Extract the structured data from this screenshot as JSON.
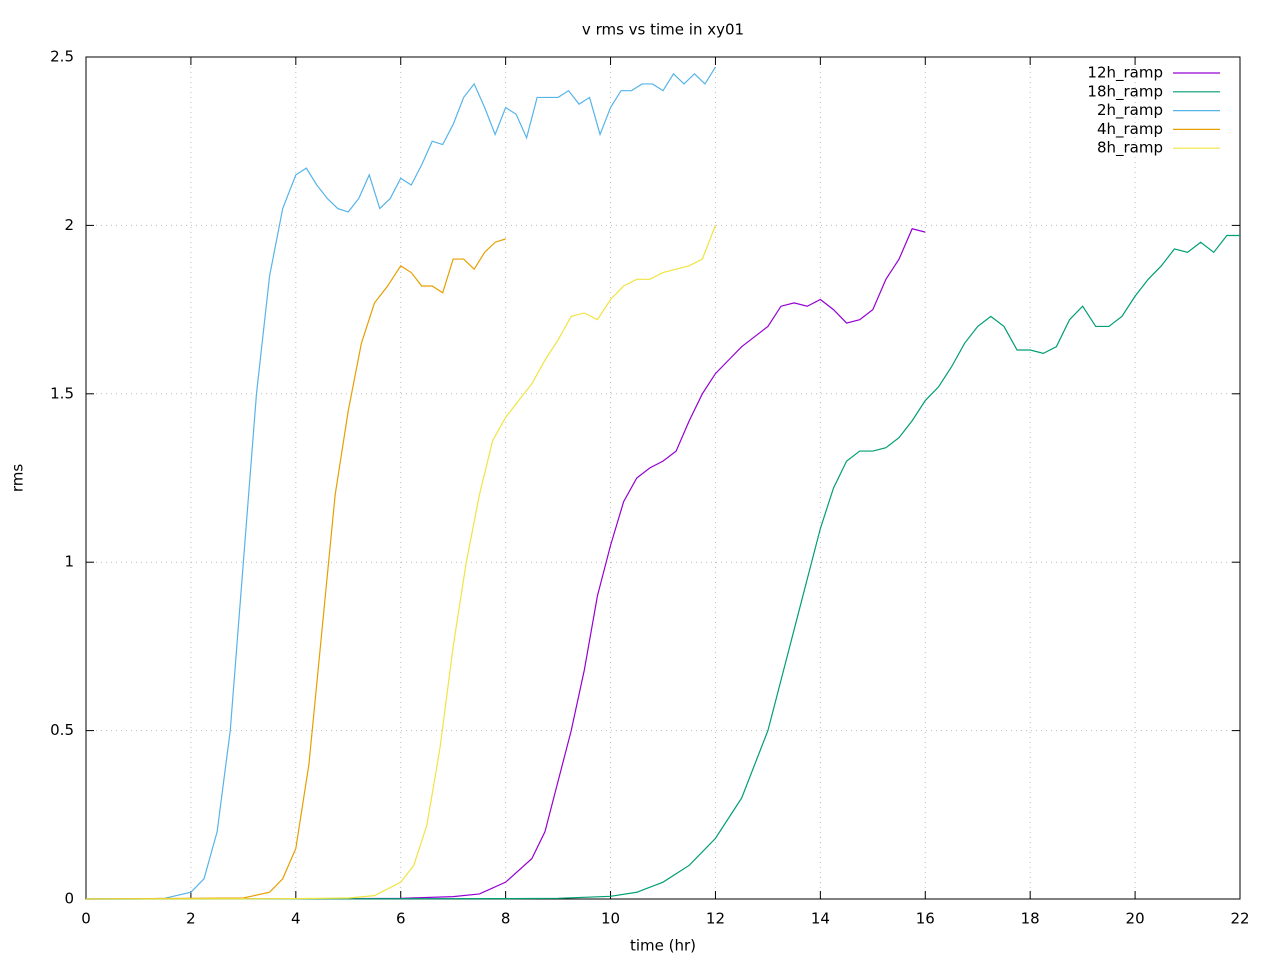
{
  "chart_data": {
    "type": "line",
    "title": "v rms vs time in xy01",
    "x_label": "time (hr)",
    "y_label": "rms",
    "xlim": [
      0,
      22
    ],
    "xticks": [
      0,
      2,
      4,
      6,
      8,
      10,
      12,
      14,
      16,
      18,
      20,
      22
    ],
    "ylim": [
      0,
      2.5
    ],
    "yticks": [
      0,
      0.5,
      1,
      1.5,
      2,
      2.5
    ],
    "grid": true,
    "legend": "top-right",
    "series": [
      {
        "name": "12h_ramp",
        "color": "#9400d3",
        "x": [
          0,
          5,
          6,
          7,
          7.5,
          8,
          8.5,
          8.75,
          9,
          9.25,
          9.5,
          9.75,
          10,
          10.25,
          10.5,
          10.75,
          11,
          11.25,
          11.5,
          11.75,
          12,
          12.25,
          12.5,
          12.75,
          13,
          13.25,
          13.5,
          13.75,
          14,
          14.25,
          14.5,
          14.75,
          15,
          15.25,
          15.5,
          15.75,
          16
        ],
        "values": [
          0,
          0.001,
          0.002,
          0.007,
          0.015,
          0.05,
          0.12,
          0.2,
          0.35,
          0.5,
          0.68,
          0.9,
          1.05,
          1.18,
          1.25,
          1.28,
          1.3,
          1.33,
          1.42,
          1.5,
          1.56,
          1.6,
          1.64,
          1.67,
          1.7,
          1.76,
          1.77,
          1.76,
          1.78,
          1.75,
          1.71,
          1.72,
          1.75,
          1.84,
          1.9,
          1.99,
          1.98
        ]
      },
      {
        "name": "18h_ramp",
        "color": "#009e73",
        "x": [
          0,
          8,
          9,
          10,
          10.5,
          11,
          11.5,
          12,
          12.5,
          13,
          13.5,
          14,
          14.25,
          14.5,
          14.75,
          15,
          15.25,
          15.5,
          15.75,
          16,
          16.25,
          16.5,
          16.75,
          17,
          17.25,
          17.5,
          17.75,
          18,
          18.25,
          18.5,
          18.75,
          19,
          19.25,
          19.5,
          19.75,
          20,
          20.25,
          20.5,
          20.75,
          21,
          21.25,
          21.5,
          21.75,
          22
        ],
        "values": [
          0,
          0.001,
          0.002,
          0.008,
          0.02,
          0.05,
          0.1,
          0.18,
          0.3,
          0.5,
          0.8,
          1.1,
          1.22,
          1.3,
          1.33,
          1.33,
          1.34,
          1.37,
          1.42,
          1.48,
          1.52,
          1.58,
          1.65,
          1.7,
          1.73,
          1.7,
          1.63,
          1.63,
          1.62,
          1.64,
          1.72,
          1.76,
          1.7,
          1.7,
          1.73,
          1.79,
          1.84,
          1.88,
          1.93,
          1.92,
          1.95,
          1.92,
          1.97,
          1.97
        ]
      },
      {
        "name": "2h_ramp",
        "color": "#56b4e9",
        "x": [
          0,
          1,
          1.5,
          2,
          2.25,
          2.5,
          2.75,
          3,
          3.25,
          3.5,
          3.75,
          4,
          4.2,
          4.4,
          4.6,
          4.8,
          5,
          5.2,
          5.4,
          5.6,
          5.8,
          6,
          6.2,
          6.4,
          6.6,
          6.8,
          7,
          7.2,
          7.4,
          7.6,
          7.8,
          8,
          8.2,
          8.4,
          8.6,
          8.8,
          9,
          9.2,
          9.4,
          9.6,
          9.8,
          10,
          10.2,
          10.4,
          10.6,
          10.8,
          11,
          11.2,
          11.4,
          11.6,
          11.8,
          12
        ],
        "values": [
          0,
          0,
          0.002,
          0.02,
          0.06,
          0.2,
          0.5,
          1.0,
          1.5,
          1.85,
          2.05,
          2.15,
          2.17,
          2.12,
          2.08,
          2.05,
          2.04,
          2.08,
          2.15,
          2.05,
          2.08,
          2.14,
          2.12,
          2.18,
          2.25,
          2.24,
          2.3,
          2.38,
          2.42,
          2.35,
          2.27,
          2.35,
          2.33,
          2.26,
          2.38,
          2.38,
          2.38,
          2.4,
          2.36,
          2.38,
          2.27,
          2.35,
          2.4,
          2.4,
          2.42,
          2.42,
          2.4,
          2.45,
          2.42,
          2.45,
          2.42,
          2.47
        ]
      },
      {
        "name": "4h_ramp",
        "color": "#e69f00",
        "x": [
          0,
          3,
          3.5,
          3.75,
          4,
          4.25,
          4.5,
          4.75,
          5,
          5.25,
          5.5,
          5.75,
          6,
          6.2,
          6.4,
          6.6,
          6.8,
          7,
          7.2,
          7.4,
          7.6,
          7.8,
          8
        ],
        "values": [
          0,
          0.003,
          0.02,
          0.06,
          0.15,
          0.4,
          0.8,
          1.2,
          1.45,
          1.65,
          1.77,
          1.82,
          1.88,
          1.86,
          1.82,
          1.82,
          1.8,
          1.9,
          1.9,
          1.87,
          1.92,
          1.95,
          1.96
        ]
      },
      {
        "name": "8h_ramp",
        "color": "#f0e442",
        "x": [
          0,
          4,
          5,
          5.5,
          6,
          6.25,
          6.5,
          6.75,
          7,
          7.25,
          7.5,
          7.75,
          8,
          8.25,
          8.5,
          8.75,
          9,
          9.25,
          9.5,
          9.75,
          10,
          10.25,
          10.5,
          10.75,
          11,
          11.25,
          11.5,
          11.75,
          12
        ],
        "values": [
          0,
          0.001,
          0.003,
          0.01,
          0.05,
          0.1,
          0.22,
          0.45,
          0.75,
          1.0,
          1.2,
          1.36,
          1.43,
          1.48,
          1.53,
          1.6,
          1.66,
          1.73,
          1.74,
          1.72,
          1.78,
          1.82,
          1.84,
          1.84,
          1.86,
          1.87,
          1.88,
          1.9,
          2.0
        ]
      }
    ]
  }
}
